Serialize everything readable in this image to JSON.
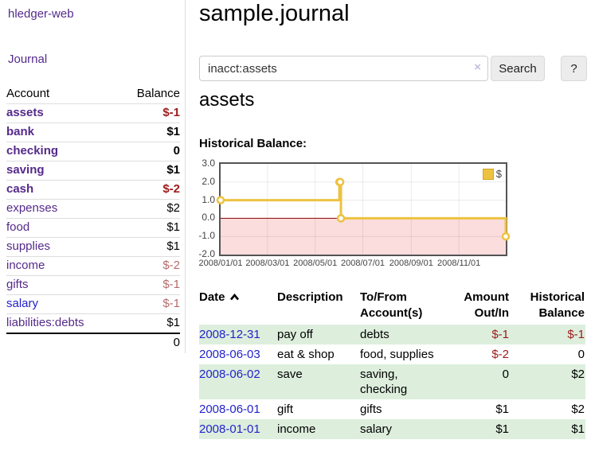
{
  "sidebar": {
    "brand": "hledger-web",
    "journal_label": "Journal",
    "accounts_header": {
      "account": "Account",
      "balance": "Balance"
    },
    "accounts": [
      {
        "name": "assets",
        "indent": 1,
        "bold": true,
        "balance": "$-1",
        "balance_tone": "neg-strong"
      },
      {
        "name": "bank",
        "indent": 2,
        "bold": true,
        "balance": "$1",
        "balance_tone": "pos"
      },
      {
        "name": "checking",
        "indent": 3,
        "bold": true,
        "balance": "0",
        "balance_tone": "pos"
      },
      {
        "name": "saving",
        "indent": 3,
        "bold": true,
        "balance": "$1",
        "balance_tone": "pos"
      },
      {
        "name": "cash",
        "indent": 2,
        "bold": true,
        "balance": "$-2",
        "balance_tone": "neg-strong"
      },
      {
        "name": "expenses",
        "indent": 1,
        "bold": false,
        "balance": "$2",
        "balance_tone": "pos"
      },
      {
        "name": "food",
        "indent": 2,
        "bold": false,
        "balance": "$1",
        "balance_tone": "pos"
      },
      {
        "name": "supplies",
        "indent": 2,
        "bold": false,
        "balance": "$1",
        "balance_tone": "pos"
      },
      {
        "name": "income",
        "indent": 1,
        "bold": false,
        "balance": "$-2",
        "balance_tone": "neg-faded"
      },
      {
        "name": "gifts",
        "indent": 2,
        "bold": false,
        "balance": "$-1",
        "balance_tone": "neg-faded"
      },
      {
        "name": "salary",
        "indent": 2,
        "bold": false,
        "balance": "$-1",
        "balance_tone": "neg-faded",
        "link_tone": "blue"
      },
      {
        "name": "liabilities:debts",
        "indent": 1,
        "bold": false,
        "balance": "$1",
        "balance_tone": "pos"
      }
    ],
    "total": "0"
  },
  "main": {
    "title": "sample.journal",
    "account_heading": "assets",
    "search": {
      "value": "inacct:assets",
      "clear_icon": "×",
      "button_label": "Search",
      "help_label": "?"
    }
  },
  "chart_data": {
    "type": "line",
    "subtype": "step-line-with-markers",
    "title": "Historical Balance:",
    "legend": [
      {
        "label": "$",
        "color": "#edc240"
      }
    ],
    "legend_position": "top-right",
    "grid": true,
    "x_range": [
      "2008-01-01",
      "2008-12-31"
    ],
    "y_range": [
      -2,
      3
    ],
    "y_ticks": [
      {
        "v": 3,
        "label": "3.0"
      },
      {
        "v": 2,
        "label": "2.0"
      },
      {
        "v": 1,
        "label": "1.0"
      },
      {
        "v": 0,
        "label": "0.0"
      },
      {
        "v": -1,
        "label": "-1.0"
      },
      {
        "v": -2,
        "label": "-2.0"
      }
    ],
    "x_ticks": [
      {
        "date": "2008-01-01",
        "label": "2008/01/01"
      },
      {
        "date": "2008-03-01",
        "label": "2008/03/01"
      },
      {
        "date": "2008-05-01",
        "label": "2008/05/01"
      },
      {
        "date": "2008-07-01",
        "label": "2008/07/01"
      },
      {
        "date": "2008-09-01",
        "label": "2008/09/01"
      },
      {
        "date": "2008-11-01",
        "label": "2008/11/01"
      }
    ],
    "series": [
      {
        "name": "$",
        "color": "#edc240",
        "points": [
          [
            "2008-01-01",
            1
          ],
          [
            "2008-06-01",
            2
          ],
          [
            "2008-06-02",
            2
          ],
          [
            "2008-06-03",
            0
          ],
          [
            "2008-12-31",
            -1
          ]
        ]
      }
    ],
    "zero_line_color": "#8b0000",
    "negative_fill": "#fbdddd"
  },
  "register": {
    "headers": {
      "date": "Date",
      "description": "Description",
      "accounts": "To/From Account(s)",
      "amount": "Amount Out/In",
      "balance": "Historical Balance"
    },
    "rows": [
      {
        "date": "2008-12-31",
        "description": "pay off",
        "accounts": "debts",
        "amount": "$-1",
        "balance": "$-1"
      },
      {
        "date": "2008-06-03",
        "description": "eat & shop",
        "accounts": "food, supplies",
        "amount": "$-2",
        "balance": "0"
      },
      {
        "date": "2008-06-02",
        "description": "save",
        "accounts": "saving, checking",
        "amount": "0",
        "balance": "$2"
      },
      {
        "date": "2008-06-01",
        "description": "gift",
        "accounts": "gifts",
        "amount": "$1",
        "balance": "$2"
      },
      {
        "date": "2008-01-01",
        "description": "income",
        "accounts": "salary",
        "amount": "$1",
        "balance": "$1"
      }
    ]
  }
}
